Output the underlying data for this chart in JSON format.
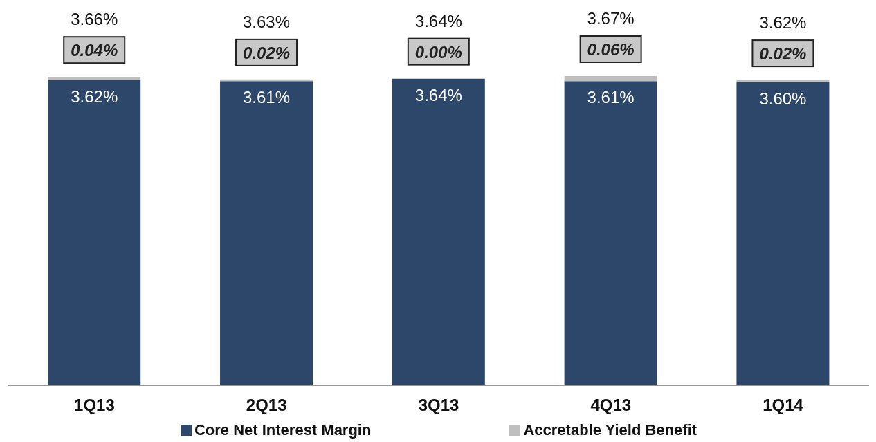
{
  "chart_data": {
    "type": "bar",
    "stacked": true,
    "categories": [
      "1Q13",
      "2Q13",
      "3Q13",
      "4Q13",
      "1Q14"
    ],
    "series": [
      {
        "name": "Core Net Interest Margin",
        "color": "#2c4769",
        "values": [
          3.62,
          3.61,
          3.64,
          3.61,
          3.6
        ],
        "value_labels": [
          "3.62%",
          "3.61%",
          "3.64%",
          "3.61%",
          "3.60%"
        ]
      },
      {
        "name": "Accretable Yield Benefit",
        "color": "#bfbfbf",
        "values": [
          0.04,
          0.02,
          0.0,
          0.06,
          0.02
        ],
        "value_labels": [
          "0.04%",
          "0.02%",
          "0.00%",
          "0.06%",
          "0.02%"
        ]
      }
    ],
    "totals": [
      "3.66%",
      "3.63%",
      "3.64%",
      "3.67%",
      "3.62%"
    ],
    "tick_labels": "x",
    "legend": "bottom"
  }
}
